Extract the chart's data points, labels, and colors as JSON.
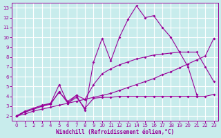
{
  "xlabel": "Windchill (Refroidissement éolien,°C)",
  "bg_color": "#c8ecec",
  "grid_color": "#ffffff",
  "line_color": "#990099",
  "xlim": [
    -0.5,
    23.5
  ],
  "ylim": [
    1.5,
    13.5
  ],
  "xticks": [
    0,
    1,
    2,
    3,
    4,
    5,
    6,
    7,
    8,
    9,
    10,
    11,
    12,
    13,
    14,
    15,
    16,
    17,
    18,
    19,
    20,
    21,
    22,
    23
  ],
  "yticks": [
    2,
    3,
    4,
    5,
    6,
    7,
    8,
    9,
    10,
    11,
    12,
    13
  ],
  "line1_x": [
    0,
    1,
    2,
    3,
    4,
    5,
    6,
    7,
    8,
    9,
    10,
    11,
    12,
    13,
    14,
    15,
    16,
    17,
    18,
    19,
    20,
    21
  ],
  "line1_y": [
    2.0,
    2.5,
    2.8,
    3.1,
    3.3,
    5.2,
    3.3,
    4.1,
    2.6,
    7.5,
    9.9,
    7.6,
    10.0,
    11.8,
    13.2,
    12.0,
    12.2,
    11.0,
    10.0,
    8.5,
    7.0,
    4.2
  ],
  "line2_x": [
    0,
    1,
    2,
    3,
    4,
    5,
    6,
    7,
    8,
    9,
    10,
    11,
    12,
    13,
    14,
    15,
    16,
    17,
    18,
    19,
    20,
    21,
    22,
    23
  ],
  "line2_y": [
    2.0,
    2.4,
    2.7,
    3.0,
    3.3,
    4.4,
    3.5,
    4.1,
    3.7,
    5.2,
    6.3,
    6.8,
    7.2,
    7.5,
    7.8,
    8.0,
    8.2,
    8.3,
    8.4,
    8.5,
    8.5,
    8.5,
    7.0,
    5.5
  ],
  "line3_x": [
    0,
    1,
    2,
    3,
    4,
    5,
    6,
    7,
    8,
    9,
    10,
    11,
    12,
    13,
    14,
    15,
    16,
    17,
    18,
    19,
    20,
    21,
    22,
    23
  ],
  "line3_y": [
    2.0,
    2.2,
    2.5,
    2.7,
    2.9,
    3.1,
    3.3,
    3.5,
    3.7,
    3.9,
    4.1,
    4.3,
    4.6,
    4.9,
    5.2,
    5.5,
    5.8,
    6.2,
    6.5,
    6.9,
    7.3,
    7.7,
    8.1,
    9.9
  ],
  "line4_x": [
    0,
    1,
    2,
    3,
    4,
    5,
    6,
    7,
    8,
    9,
    10,
    11,
    12,
    13,
    14,
    15,
    16,
    17,
    18,
    19,
    20,
    21,
    22,
    23
  ],
  "line4_y": [
    2.0,
    2.4,
    2.7,
    3.0,
    3.2,
    4.5,
    3.3,
    3.9,
    2.8,
    3.8,
    3.9,
    3.9,
    4.0,
    4.0,
    4.0,
    4.0,
    4.0,
    4.0,
    4.0,
    4.0,
    4.0,
    4.0,
    4.0,
    4.2
  ]
}
